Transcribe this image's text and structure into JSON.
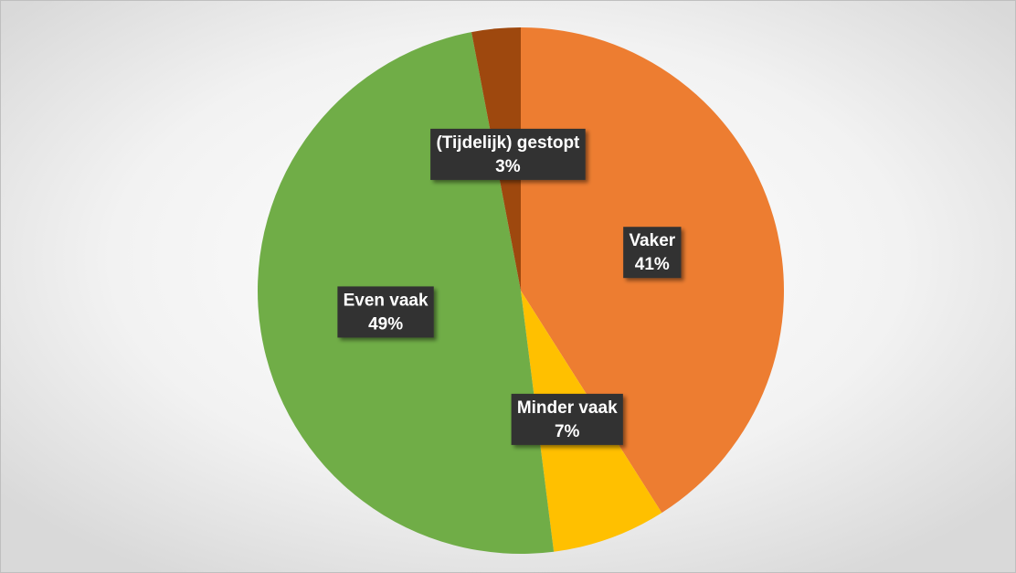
{
  "chart_data": {
    "type": "pie",
    "categories": [
      "Vaker",
      "Minder vaak",
      "Even vaak",
      "(Tijdelijk) gestopt"
    ],
    "values": [
      41,
      7,
      49,
      3
    ],
    "value_labels": [
      "41%",
      "7%",
      "49%",
      "3%"
    ],
    "colors": [
      "#ed7d31",
      "#ffc000",
      "#70ad47",
      "#9e480e"
    ]
  }
}
